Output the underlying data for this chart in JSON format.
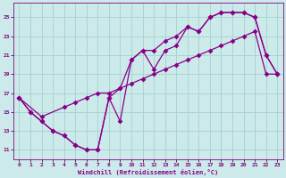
{
  "xlabel": "Windchill (Refroidissement éolien,°C)",
  "background_color": "#cceaea",
  "grid_color": "#aad4d4",
  "line_color": "#880088",
  "xlim": [
    -0.5,
    23.5
  ],
  "ylim": [
    10.0,
    26.5
  ],
  "xticks": [
    0,
    1,
    2,
    3,
    4,
    5,
    6,
    7,
    8,
    9,
    10,
    11,
    12,
    13,
    14,
    15,
    16,
    17,
    18,
    19,
    20,
    21,
    22,
    23
  ],
  "yticks": [
    11,
    13,
    15,
    17,
    19,
    21,
    23,
    25
  ],
  "series1_x": [
    0,
    1,
    2,
    3,
    4,
    5,
    6,
    7,
    8,
    9,
    10,
    11,
    12,
    13,
    14,
    15,
    16,
    17,
    18,
    19,
    20,
    21,
    22,
    23
  ],
  "series1_y": [
    16.5,
    15.0,
    14.0,
    13.0,
    12.5,
    11.5,
    11.0,
    11.0,
    16.5,
    14.0,
    20.5,
    21.5,
    19.5,
    21.5,
    22.0,
    24.0,
    23.5,
    25.0,
    25.5,
    25.5,
    25.5,
    25.0,
    21.0,
    19.0
  ],
  "series2_x": [
    0,
    2,
    4,
    5,
    6,
    7,
    8,
    9,
    10,
    11,
    12,
    13,
    14,
    15,
    16,
    17,
    18,
    19,
    20,
    21,
    22,
    23
  ],
  "series2_y": [
    16.5,
    14.5,
    15.5,
    16.0,
    16.5,
    17.0,
    17.0,
    17.5,
    18.0,
    18.5,
    19.0,
    19.5,
    20.0,
    20.5,
    21.0,
    21.5,
    22.0,
    22.5,
    23.0,
    23.5,
    19.0,
    19.0
  ],
  "series3_x": [
    0,
    1,
    2,
    3,
    4,
    5,
    6,
    7,
    8,
    9,
    10,
    11,
    12,
    13,
    14,
    15,
    16,
    17,
    18,
    19,
    20,
    21,
    22,
    23
  ],
  "series3_y": [
    16.5,
    15.0,
    14.0,
    13.0,
    12.5,
    11.5,
    11.0,
    11.0,
    16.5,
    17.5,
    20.5,
    21.5,
    21.5,
    22.5,
    23.0,
    24.0,
    23.5,
    25.0,
    25.5,
    25.5,
    25.5,
    25.0,
    21.0,
    19.0
  ]
}
